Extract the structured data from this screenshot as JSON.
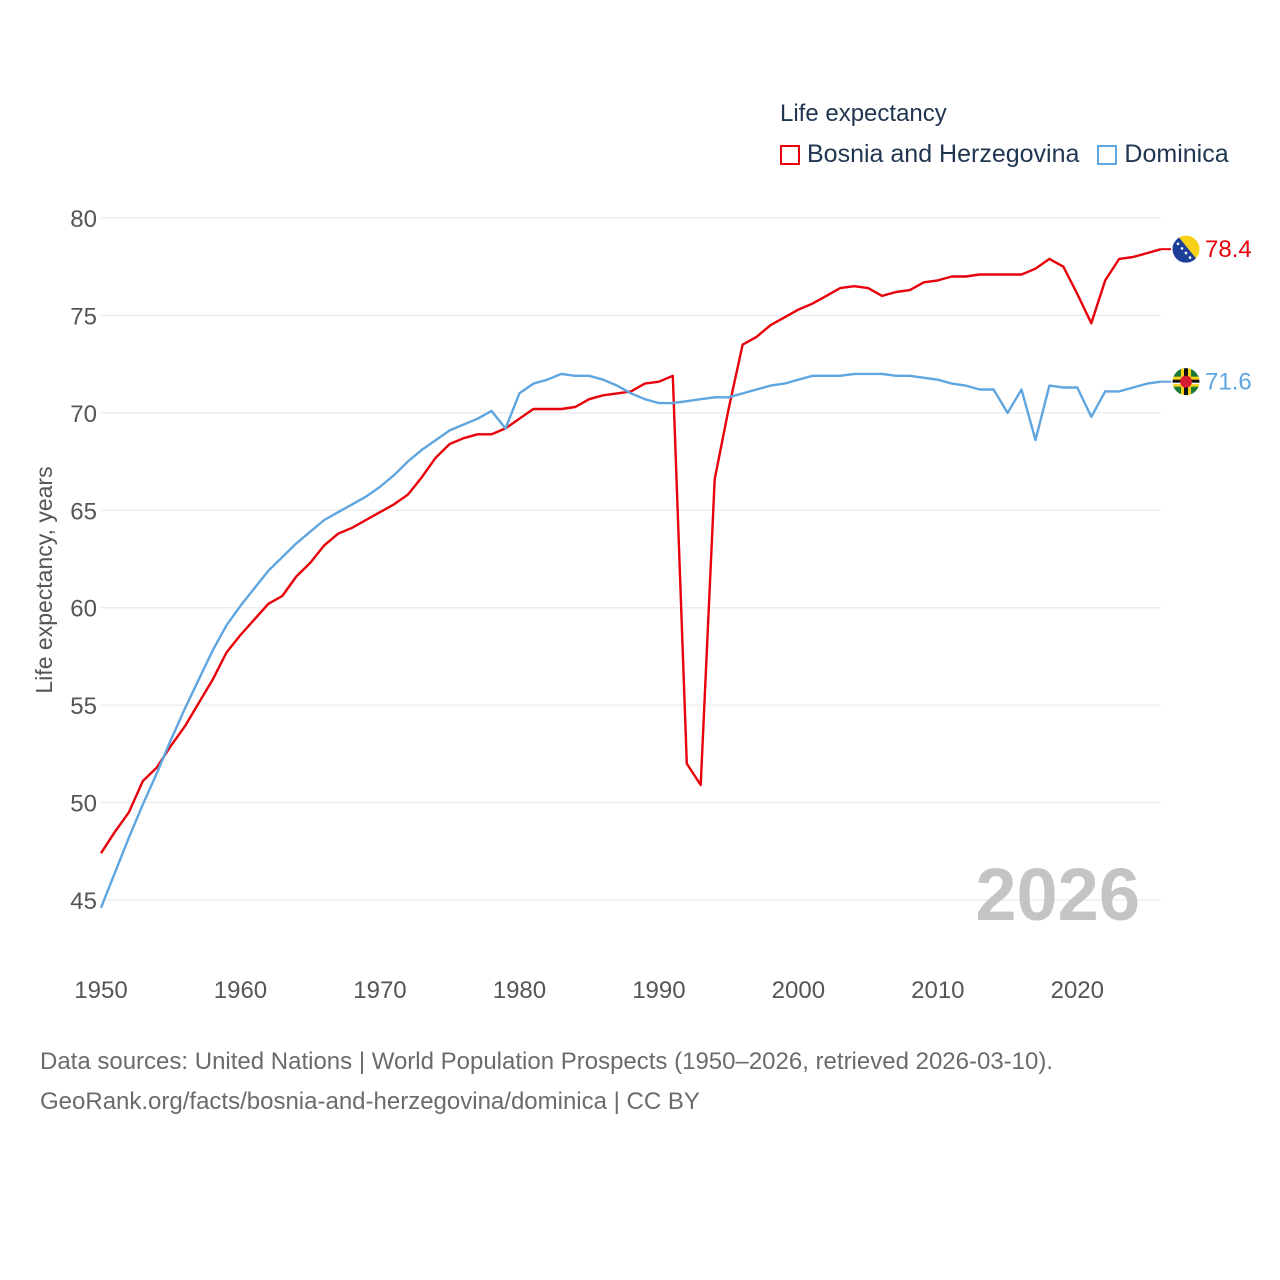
{
  "legend": {
    "title": "Life expectancy"
  },
  "source": {
    "line1": "Data sources: United Nations | World Population Prospects (1950–2026, retrieved 2026-03-10).",
    "line2": "GeoRank.org/facts/bosnia-and-herzegovina/dominica | CC BY"
  },
  "chart_data": {
    "type": "line",
    "title": "Life expectancy",
    "xlabel": "",
    "ylabel": "Life expectancy, years",
    "xlim": [
      1950,
      2026
    ],
    "ylim": [
      44,
      80
    ],
    "xticks": [
      1950,
      1960,
      1970,
      1980,
      1990,
      2000,
      2010,
      2020
    ],
    "yticks": [
      45,
      50,
      55,
      60,
      65,
      70,
      75,
      80
    ],
    "grid": true,
    "legend_position": "top-right",
    "watermark_year": "2026",
    "x": [
      1950,
      1951,
      1952,
      1953,
      1954,
      1955,
      1956,
      1957,
      1958,
      1959,
      1960,
      1961,
      1962,
      1963,
      1964,
      1965,
      1966,
      1967,
      1968,
      1969,
      1970,
      1971,
      1972,
      1973,
      1974,
      1975,
      1976,
      1977,
      1978,
      1979,
      1980,
      1981,
      1982,
      1983,
      1984,
      1985,
      1986,
      1987,
      1988,
      1989,
      1990,
      1991,
      1992,
      1993,
      1994,
      1995,
      1996,
      1997,
      1998,
      1999,
      2000,
      2001,
      2002,
      2003,
      2004,
      2005,
      2006,
      2007,
      2008,
      2009,
      2010,
      2011,
      2012,
      2013,
      2014,
      2015,
      2016,
      2017,
      2018,
      2019,
      2020,
      2021,
      2022,
      2023,
      2024,
      2025,
      2026
    ],
    "series": [
      {
        "name": "Bosnia and Herzegovina",
        "color": "#e8000b",
        "end_label": "78.4",
        "flag": "bosnia-and-herzegovina-flag",
        "values": [
          47.4,
          48.5,
          49.5,
          51.1,
          51.8,
          52.9,
          53.9,
          55.1,
          56.3,
          57.7,
          58.6,
          59.4,
          60.2,
          60.6,
          61.6,
          62.3,
          63.2,
          63.8,
          64.1,
          64.5,
          64.9,
          65.3,
          65.8,
          66.7,
          67.7,
          68.4,
          68.7,
          68.9,
          68.9,
          69.2,
          69.7,
          70.2,
          70.2,
          70.2,
          70.3,
          70.7,
          70.9,
          71.0,
          71.1,
          71.5,
          71.6,
          71.9,
          52.0,
          50.9,
          66.6,
          70.2,
          73.5,
          73.9,
          74.5,
          74.9,
          75.3,
          75.6,
          76.0,
          76.4,
          76.5,
          76.4,
          76.0,
          76.2,
          76.3,
          76.7,
          76.8,
          77.0,
          77.0,
          77.1,
          77.1,
          77.1,
          77.1,
          77.4,
          77.9,
          77.5,
          76.1,
          74.6,
          76.8,
          77.9,
          78.0,
          78.2,
          78.4
        ]
      },
      {
        "name": "Dominica",
        "color": "#5fa6e0",
        "end_label": "71.6",
        "flag": "dominica-flag",
        "values": [
          44.6,
          46.4,
          48.2,
          49.9,
          51.5,
          53.2,
          54.8,
          56.3,
          57.8,
          59.1,
          60.1,
          61.0,
          61.9,
          62.6,
          63.3,
          63.9,
          64.5,
          64.9,
          65.3,
          65.7,
          66.2,
          66.8,
          67.5,
          68.1,
          68.6,
          69.1,
          69.4,
          69.7,
          70.1,
          69.2,
          71.0,
          71.5,
          71.7,
          72.0,
          71.9,
          71.9,
          71.7,
          71.4,
          71.0,
          70.7,
          70.5,
          70.5,
          70.6,
          70.7,
          70.8,
          70.8,
          71.0,
          71.2,
          71.4,
          71.5,
          71.7,
          71.9,
          71.9,
          71.9,
          72.0,
          72.0,
          72.0,
          71.9,
          71.9,
          71.8,
          71.7,
          71.5,
          71.4,
          71.2,
          71.2,
          70.0,
          71.2,
          68.6,
          71.4,
          71.3,
          71.3,
          69.8,
          71.1,
          71.1,
          71.3,
          71.5,
          71.6
        ]
      }
    ]
  }
}
